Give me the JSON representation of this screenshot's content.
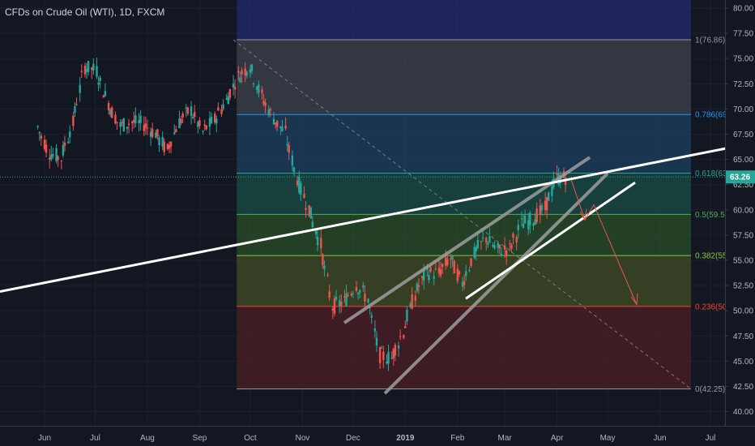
{
  "header": {
    "title": "CFDs on Crude Oil (WTI), 1D, FXCM"
  },
  "colors": {
    "background": "#131722",
    "candle_up": "#26a69a",
    "candle_down": "#ef5350",
    "trendline": "#ffffff",
    "channel": "#9e9e9e",
    "projection": "#ef5350",
    "current_price_line": "#26a69a",
    "current_price_tag": "#26a69a"
  },
  "chart_data": {
    "type": "candlestick",
    "title": "CFDs on Crude Oil (WTI), 1D, FXCM",
    "x_tick_labels": [
      "Jun",
      "Jul",
      "Aug",
      "Sep",
      "Oct",
      "Nov",
      "Dec",
      "2019",
      "Feb",
      "Mar",
      "Apr",
      "May",
      "Jun",
      "Jul"
    ],
    "y_tick_labels": [
      "80.00",
      "77.50",
      "75.00",
      "72.50",
      "70.00",
      "67.50",
      "65.00",
      "62.50",
      "60.00",
      "57.50",
      "55.00",
      "52.50",
      "50.00",
      "47.50",
      "45.00",
      "42.50",
      "40.00"
    ],
    "ylim": [
      39.0,
      80.8
    ],
    "current_price": {
      "value": 63.26,
      "label": "63.26"
    },
    "fibonacci_retracement": {
      "high": 76.86,
      "low": 42.25,
      "levels": [
        {
          "ratio": 1,
          "price": 76.86,
          "label": "1(76.86)",
          "color": "#9598a1",
          "fill": "#ffffff12"
        },
        {
          "ratio": 0.786,
          "price": 69.45,
          "label": "0.786(69",
          "color": "#2196f3",
          "fill": "#2196f31a"
        },
        {
          "ratio": 0.618,
          "price": 63.64,
          "label": "0.618(63",
          "color": "#26a69a",
          "fill": "#26a69a1c"
        },
        {
          "ratio": 0.5,
          "price": 59.55,
          "label": "0.5(59.5",
          "color": "#4caf50",
          "fill": "#4caf501f"
        },
        {
          "ratio": 0.382,
          "price": 55.47,
          "label": "0.382(55",
          "color": "#8bc34a",
          "fill": "#8bc34a1a"
        },
        {
          "ratio": 0.236,
          "price": 50.42,
          "label": "0.236(50",
          "color": "#f44336",
          "fill": "#f443362a"
        },
        {
          "ratio": 0,
          "price": 42.25,
          "label": "0(42.25)",
          "color": "#9598a1",
          "fill": null
        }
      ]
    },
    "candles_approx": [
      {
        "date": "2018-05-28",
        "close": 68.2
      },
      {
        "date": "2018-06-04",
        "close": 65.7
      },
      {
        "date": "2018-06-11",
        "close": 65.1
      },
      {
        "date": "2018-06-18",
        "close": 68.6
      },
      {
        "date": "2018-06-25",
        "close": 74.2
      },
      {
        "date": "2018-07-02",
        "close": 73.8
      },
      {
        "date": "2018-07-09",
        "close": 70.6
      },
      {
        "date": "2018-07-16",
        "close": 68.3
      },
      {
        "date": "2018-07-23",
        "close": 68.7
      },
      {
        "date": "2018-07-30",
        "close": 68.5
      },
      {
        "date": "2018-08-06",
        "close": 67.6
      },
      {
        "date": "2018-08-13",
        "close": 65.9
      },
      {
        "date": "2018-08-20",
        "close": 68.7
      },
      {
        "date": "2018-08-27",
        "close": 69.9
      },
      {
        "date": "2018-09-03",
        "close": 67.7
      },
      {
        "date": "2018-09-10",
        "close": 68.9
      },
      {
        "date": "2018-09-17",
        "close": 70.8
      },
      {
        "date": "2018-09-24",
        "close": 73.2
      },
      {
        "date": "2018-10-01",
        "close": 74.3
      },
      {
        "date": "2018-10-08",
        "close": 71.3
      },
      {
        "date": "2018-10-15",
        "close": 69.1
      },
      {
        "date": "2018-10-22",
        "close": 67.6
      },
      {
        "date": "2018-10-29",
        "close": 63.1
      },
      {
        "date": "2018-11-05",
        "close": 60.2
      },
      {
        "date": "2018-11-12",
        "close": 56.5
      },
      {
        "date": "2018-11-19",
        "close": 50.4
      },
      {
        "date": "2018-11-26",
        "close": 50.9
      },
      {
        "date": "2018-12-03",
        "close": 52.6
      },
      {
        "date": "2018-12-10",
        "close": 51.2
      },
      {
        "date": "2018-12-17",
        "close": 45.6
      },
      {
        "date": "2018-12-24",
        "close": 45.3
      },
      {
        "date": "2018-12-31",
        "close": 47.9
      },
      {
        "date": "2019-01-07",
        "close": 51.6
      },
      {
        "date": "2019-01-14",
        "close": 53.8
      },
      {
        "date": "2019-01-21",
        "close": 53.7
      },
      {
        "date": "2019-01-28",
        "close": 55.2
      },
      {
        "date": "2019-02-04",
        "close": 52.7
      },
      {
        "date": "2019-02-11",
        "close": 55.6
      },
      {
        "date": "2019-02-18",
        "close": 57.2
      },
      {
        "date": "2019-02-25",
        "close": 56.0
      },
      {
        "date": "2019-03-04",
        "close": 56.1
      },
      {
        "date": "2019-03-11",
        "close": 58.5
      },
      {
        "date": "2019-03-18",
        "close": 59.1
      },
      {
        "date": "2019-03-25",
        "close": 60.1
      },
      {
        "date": "2019-04-01",
        "close": 63.1
      },
      {
        "date": "2019-04-08",
        "close": 63.3
      }
    ],
    "annotations": [
      "Long white support trendline rising from the left edge to the right edge",
      "Grey rising wedge channel lines from the December low to April",
      "White rising support line under price from February",
      "Red dashed diagonal from the October high toward the bottom right",
      "Red projection arrows pointing down toward the 0.236 level"
    ]
  }
}
